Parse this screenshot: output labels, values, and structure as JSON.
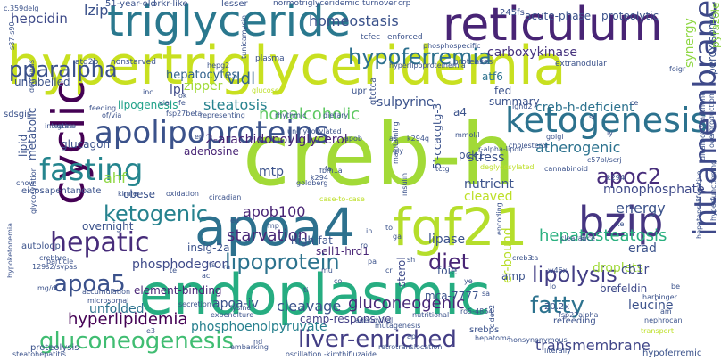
{
  "words": [
    {
      "text": "hypertriglyceridemia",
      "color": "#c8e020"
    },
    {
      "text": "creb-h",
      "color": "#a2da37"
    },
    {
      "text": "endoplasmic",
      "color": "#26ad81"
    },
    {
      "text": "triglyceride",
      "color": "#2a788e"
    },
    {
      "text": "reticulum",
      "color": "#482475"
    },
    {
      "text": "apoa4",
      "color": "#2d718e"
    },
    {
      "text": "fgf21",
      "color": "#b5de2b"
    },
    {
      "text": "cyclic",
      "color": "#440154"
    },
    {
      "text": "bzip",
      "color": "#453581"
    },
    {
      "text": "ketogenesis",
      "color": "#2c728e"
    },
    {
      "text": "fasting",
      "color": "#25858e"
    },
    {
      "text": "apolipoproteins",
      "color": "#3b528b"
    },
    {
      "text": "intramembrane",
      "color": "#3e4989"
    },
    {
      "text": "hepatic",
      "color": "#472c7a"
    },
    {
      "text": "pparalpha",
      "color": "#3b518b"
    },
    {
      "text": "hypoferremia",
      "color": "#2d708e"
    },
    {
      "text": "liver-enriched",
      "color": "#433e85"
    },
    {
      "text": "gluconeogenesis",
      "color": "#40bd72"
    },
    {
      "text": "fatty",
      "color": "#2c728e"
    },
    {
      "text": "apoa5",
      "color": "#3b518b"
    },
    {
      "text": "lipoprotein",
      "color": "#2c738e"
    },
    {
      "text": "lipolysis",
      "color": "#433e85"
    },
    {
      "text": "apoc2",
      "color": "#472d7b"
    },
    {
      "text": "ketogenic",
      "color": "#26828e"
    },
    {
      "text": "diet",
      "color": "#482475"
    },
    {
      "text": "homeostasis",
      "color": "#3b528b"
    },
    {
      "text": "hepatocytes",
      "color": "#33638d"
    },
    {
      "text": "carboxykinase",
      "color": "#46337e"
    },
    {
      "text": "vldl",
      "color": "#33638d"
    },
    {
      "text": "hepcidin",
      "color": "#3e4a89"
    },
    {
      "text": "lzip",
      "color": "#3b528b"
    },
    {
      "text": "steatosis",
      "color": "#26828e"
    },
    {
      "text": "nonalcoholic",
      "color": "#5ec962"
    },
    {
      "text": "hepatosteatosis",
      "color": "#2ab07f"
    },
    {
      "text": "starvation",
      "color": "#482878"
    },
    {
      "text": "apob100",
      "color": "#482475"
    },
    {
      "text": "atherogenic",
      "color": "#2c728e"
    },
    {
      "text": "gluconeogenic",
      "color": "#482878"
    },
    {
      "text": "hyperlipidemia",
      "color": "#440154"
    },
    {
      "text": "phosphoenolpyruvate",
      "color": "#27808e"
    },
    {
      "text": "2-arachidonoylglycerol",
      "color": "#482475"
    },
    {
      "text": "creb-h-deficient",
      "color": "#2c728e"
    },
    {
      "text": "energy",
      "color": "#3b528b"
    },
    {
      "text": "cleavage",
      "color": "#3b528b"
    },
    {
      "text": "transmembrane",
      "color": "#404688"
    },
    {
      "text": "camp-responsive",
      "color": "#423f85"
    },
    {
      "text": "phosphodegron",
      "color": "#3e4a89"
    },
    {
      "text": "unfolded",
      "color": "#2c728e"
    },
    {
      "text": "lipase",
      "color": "#3b528b"
    },
    {
      "text": "monophosphate",
      "color": "#3e4989"
    },
    {
      "text": "lpl",
      "color": "#3e4a89"
    },
    {
      "text": "sulpyrine",
      "color": "#3b528b"
    },
    {
      "text": "apoa-iv",
      "color": "#3b528b"
    },
    {
      "text": "synergy",
      "color": "#8fd744"
    },
    {
      "text": "droplets",
      "color": "#a0da39"
    },
    {
      "text": "cb1r",
      "color": "#3f4889"
    },
    {
      "text": "leucine",
      "color": "#3b528b"
    },
    {
      "text": "foie",
      "color": "#3b528b"
    },
    {
      "text": "adenosine",
      "color": "#482475"
    },
    {
      "text": "overnight",
      "color": "#3b528b"
    },
    {
      "text": "mtp",
      "color": "#3b528b"
    },
    {
      "text": "nutrient",
      "color": "#3b528b"
    },
    {
      "text": "cleaved",
      "color": "#bddf26"
    },
    {
      "text": "erad",
      "color": "#3b528b"
    },
    {
      "text": "stress",
      "color": "#3b528b"
    },
    {
      "text": "brefeldin",
      "color": "#3e4a89"
    },
    {
      "text": "zipper",
      "color": "#a0da39"
    },
    {
      "text": "sterol",
      "color": "#3e4a89"
    },
    {
      "text": "metabolic",
      "color": "#3b528b"
    },
    {
      "text": "element-binding",
      "color": "#482475"
    },
    {
      "text": "high-fat",
      "color": "#3b528b"
    },
    {
      "text": "ahf",
      "color": "#8fd744"
    },
    {
      "text": "lipogenesis",
      "color": "#1fa188"
    },
    {
      "text": "unlabelled",
      "color": "#3b528b"
    },
    {
      "text": "er-bound",
      "color": "#b8de29"
    },
    {
      "text": "sell1-hrd1",
      "color": "#482475"
    },
    {
      "text": "peroxisome",
      "color": "#3b528b"
    },
    {
      "text": "pyrazole",
      "color": "#8fd744"
    },
    {
      "text": "glucagon",
      "color": "#3b528b"
    },
    {
      "text": "insig-2a",
      "color": "#3b528b"
    },
    {
      "text": "a4",
      "color": "#3b528b"
    },
    {
      "text": "mca-7777",
      "color": "#3b528b"
    },
    {
      "text": "amp",
      "color": "#3b528b"
    },
    {
      "text": "atf6",
      "color": "#2c728e"
    },
    {
      "text": "fed",
      "color": "#3b528b"
    },
    {
      "text": "summary",
      "color": "#3b528b"
    },
    {
      "text": "pck1",
      "color": "#3b528b"
    },
    {
      "text": "5'-ccacgtg-3",
      "color": "#3b528b"
    },
    {
      "text": "lipid",
      "color": "#3b528b"
    },
    {
      "text": "upr",
      "color": "#3b528b"
    },
    {
      "text": "gtctca",
      "color": "#3b528b"
    },
    {
      "text": "obese",
      "color": "#3b528b"
    },
    {
      "text": "acute-phase",
      "color": "#3b528b"
    },
    {
      "text": "proteolytic",
      "color": "#3b528b"
    },
    {
      "text": "245fs",
      "color": "#3b528b"
    },
    {
      "text": "lesser",
      "color": "#3b528b"
    },
    {
      "text": "prkr-like",
      "color": "#3b528b"
    },
    {
      "text": "51-year-old",
      "color": "#3b528b"
    },
    {
      "text": "enforced",
      "color": "#3b528b"
    },
    {
      "text": "tcfec",
      "color": "#3b528b"
    },
    {
      "text": "plasma",
      "color": "#3b528b"
    },
    {
      "text": "nonstarved",
      "color": "#3b528b"
    },
    {
      "text": "proteases",
      "color": "#3b528b"
    },
    {
      "text": "extranodular",
      "color": "#3b528b"
    },
    {
      "text": "eicosapentanoate",
      "color": "#3b528b"
    },
    {
      "text": "autoloop",
      "color": "#3b528b"
    },
    {
      "text": "proteolysis",
      "color": "#3b528b"
    },
    {
      "text": "steatohepatitis",
      "color": "#3b528b"
    },
    {
      "text": "hypoferremic",
      "color": "#3b528b"
    },
    {
      "text": "srebps",
      "color": "#3b528b"
    },
    {
      "text": "refeeding",
      "color": "#3b528b"
    },
    {
      "text": "20.2x",
      "color": "#3b528b"
    },
    {
      "text": "intestine",
      "color": "#3b528b"
    },
    {
      "text": "nutritional",
      "color": "#3b528b"
    },
    {
      "text": "glucose",
      "color": "#bddf26"
    },
    {
      "text": "normotriglyceridemic",
      "color": "#3b528b"
    },
    {
      "text": "turnover",
      "color": "#3b528b"
    },
    {
      "text": "crp",
      "color": "#3b528b"
    },
    {
      "text": "atg2b",
      "color": "#3b528b"
    },
    {
      "text": "kimler",
      "color": "#3b528b"
    },
    {
      "text": "fsp27beta",
      "color": "#3b528b"
    },
    {
      "text": "feeding",
      "color": "#3b528b"
    },
    {
      "text": "k294q",
      "color": "#3b528b"
    },
    {
      "text": "ighd2",
      "color": "#3b528b"
    },
    {
      "text": "mmol/l",
      "color": "#3b528b"
    },
    {
      "text": "cholesterol",
      "color": "#3b528b"
    },
    {
      "text": "r-alpha-lipoic",
      "color": "#3b528b"
    },
    {
      "text": "golgi",
      "color": "#3b528b"
    },
    {
      "text": "deglycosylated",
      "color": "#bddf26"
    },
    {
      "text": "cannabinoid",
      "color": "#3b528b"
    },
    {
      "text": "fsp27alpha",
      "color": "#3b528b"
    },
    {
      "text": "hepatoma",
      "color": "#3b528b"
    },
    {
      "text": "nonsynonymous",
      "color": "#3b528b"
    },
    {
      "text": "oscillation.-kim",
      "color": "#3b528b"
    },
    {
      "text": "thifluzaide",
      "color": "#3b528b"
    },
    {
      "text": "secretion",
      "color": "#3b528b"
    },
    {
      "text": "microsomal",
      "color": "#3b528b"
    },
    {
      "text": "accumulation",
      "color": "#3b528b"
    },
    {
      "text": "glycosylation",
      "color": "#3b528b"
    },
    {
      "text": "c.359delg",
      "color": "#3b528b"
    },
    {
      "text": "s87-s90",
      "color": "#3b528b"
    },
    {
      "text": "sdsgis",
      "color": "#3b528b"
    },
    {
      "text": "hepatoproliferative",
      "color": "#3b528b"
    },
    {
      "text": "hyperfunctioning",
      "color": "#3b528b"
    },
    {
      "text": "transport",
      "color": "#bddf26"
    },
    {
      "text": "nephrocan",
      "color": "#3b528b"
    },
    {
      "text": "cidec2",
      "color": "#3b528b"
    },
    {
      "text": "ro5-4864",
      "color": "#3b528b"
    },
    {
      "text": "unglycosylated",
      "color": "#3b528b"
    },
    {
      "text": "rhythmic",
      "color": "#3b528b"
    },
    {
      "text": "dietary",
      "color": "#3b528b"
    },
    {
      "text": "of/via",
      "color": "#3b528b"
    },
    {
      "text": "gras",
      "color": "#3b528b"
    },
    {
      "text": "hypoketonemia",
      "color": "#3b528b"
    },
    {
      "text": "hepg2",
      "color": "#3b528b"
    },
    {
      "text": "foigr",
      "color": "#3b528b"
    },
    {
      "text": "phosphospecific",
      "color": "#3b528b"
    },
    {
      "text": "hyperlipoproteinemia",
      "color": "#3b528b"
    },
    {
      "text": "fbm1a",
      "color": "#3b528b"
    },
    {
      "text": "tctg",
      "color": "#3b528b"
    },
    {
      "text": "circadian",
      "color": "#3b528b"
    },
    {
      "text": "oxidation",
      "color": "#3b528b"
    },
    {
      "text": "insulin",
      "color": "#3b528b"
    },
    {
      "text": "maintaining",
      "color": "#3b528b"
    },
    {
      "text": "tunicamycin",
      "color": "#3b528b"
    },
    {
      "text": "representing",
      "color": "#3b528b"
    },
    {
      "text": "mg/dl",
      "color": "#3b528b"
    },
    {
      "text": "expenditure",
      "color": "#3b528b"
    },
    {
      "text": "lysine",
      "color": "#3b528b"
    },
    {
      "text": "particle",
      "color": "#3b528b"
    },
    {
      "text": "129s2/svpas",
      "color": "#3b528b"
    },
    {
      "text": "crebhre",
      "color": "#3b528b"
    },
    {
      "text": "embarking",
      "color": "#3b528b"
    },
    {
      "text": "adenoviral",
      "color": "#3b528b"
    },
    {
      "text": "mutagenesis",
      "color": "#3b528b"
    },
    {
      "text": "literally",
      "color": "#3b528b"
    },
    {
      "text": "encoding",
      "color": "#3b528b"
    },
    {
      "text": "clearance",
      "color": "#3b528b"
    },
    {
      "text": "overproduction",
      "color": "#3b528b"
    },
    {
      "text": "dicarboxylmethane",
      "color": "#3b528b"
    },
    {
      "text": "harbinger",
      "color": "#3b528b"
    },
    {
      "text": "c57bl/scrj",
      "color": "#3b528b"
    },
    {
      "text": "k294r",
      "color": "#3b528b"
    },
    {
      "text": "k294",
      "color": "#3b528b"
    },
    {
      "text": "goldberg",
      "color": "#3b528b"
    },
    {
      "text": "w46x",
      "color": "#3b528b"
    },
    {
      "text": "demands",
      "color": "#3b528b"
    },
    {
      "text": "fa",
      "color": "#3b528b"
    },
    {
      "text": "case-to-case",
      "color": "#bddf26"
    },
    {
      "text": "chow",
      "color": "#3b528b"
    },
    {
      "text": "apob",
      "color": "#3b528b"
    },
    {
      "text": "retrotranslocation",
      "color": "#3b528b"
    },
    {
      "text": "creb3",
      "color": "#3b528b"
    },
    {
      "text": "fe",
      "color": "#3b528b"
    },
    {
      "text": "via",
      "color": "#3b528b"
    },
    {
      "text": "inc",
      "color": "#3b528b"
    },
    {
      "text": "ok",
      "color": "#3b528b"
    },
    {
      "text": "er",
      "color": "#3b528b"
    },
    {
      "text": "gly",
      "color": "#3b528b"
    },
    {
      "text": "as",
      "color": "#3b528b"
    },
    {
      "text": "ed",
      "color": "#3b528b"
    },
    {
      "text": "e3",
      "color": "#3b528b"
    },
    {
      "text": "mp",
      "color": "#3b528b"
    },
    {
      "text": "nd",
      "color": "#3b528b"
    },
    {
      "text": "ra",
      "color": "#3b528b"
    },
    {
      "text": "te",
      "color": "#3b528b"
    },
    {
      "text": "ac",
      "color": "#3b528b"
    },
    {
      "text": "ts",
      "color": "#3b528b"
    },
    {
      "text": "in",
      "color": "#3b528b"
    },
    {
      "text": "to",
      "color": "#3b528b"
    },
    {
      "text": "ga",
      "color": "#3b528b"
    },
    {
      "text": "ro",
      "color": "#3b528b"
    },
    {
      "text": "pa",
      "color": "#3b528b"
    },
    {
      "text": "cr",
      "color": "#3b528b"
    },
    {
      "text": "sh",
      "color": "#3b528b"
    },
    {
      "text": "mu",
      "color": "#3b528b"
    },
    {
      "text": "co",
      "color": "#3b528b"
    },
    {
      "text": "ti",
      "color": "#3b528b"
    },
    {
      "text": "ye",
      "color": "#3b528b"
    },
    {
      "text": "sa",
      "color": "#3b528b"
    },
    {
      "text": "ca",
      "color": "#3b528b"
    },
    {
      "text": "lo",
      "color": "#3b528b"
    },
    {
      "text": "kr",
      "color": "#3b528b"
    },
    {
      "text": "ap",
      "color": "#3b528b"
    },
    {
      "text": "xe",
      "color": "#3b528b"
    },
    {
      "text": "be",
      "color": "#3b528b"
    },
    {
      "text": "am",
      "color": "#3b528b"
    },
    {
      "text": "ly",
      "color": "#3b528b"
    },
    {
      "text": "sr",
      "color": "#3b528b"
    },
    {
      "text": "ce",
      "color": "#3b528b"
    }
  ]
}
